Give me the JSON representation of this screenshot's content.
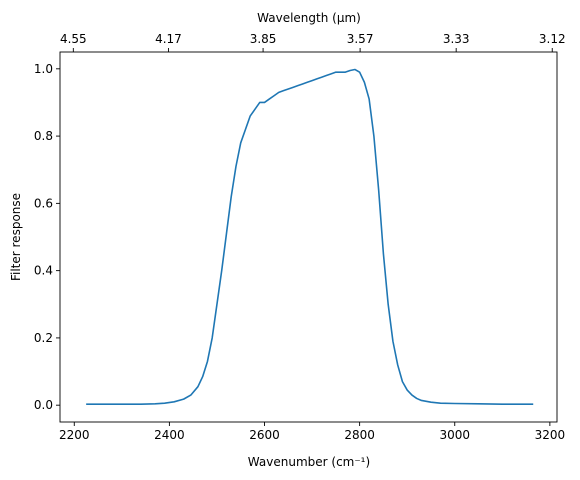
{
  "chart_data": {
    "type": "line",
    "title": "",
    "xlabel": "Wavenumber (cm⁻¹)",
    "ylabel": "Filter response",
    "top_xlabel": "Wavelength (μm)",
    "xlim": [
      2170,
      3215
    ],
    "ylim": [
      -0.05,
      1.05
    ],
    "x_ticks": [
      2200,
      2400,
      2600,
      2800,
      3000,
      3200
    ],
    "x_tick_labels": [
      "2200",
      "2400",
      "2600",
      "2800",
      "3000",
      "3200"
    ],
    "y_ticks": [
      0.0,
      0.2,
      0.4,
      0.6,
      0.8,
      1.0
    ],
    "y_tick_labels": [
      "0.0",
      "0.2",
      "0.4",
      "0.6",
      "0.8",
      "1.0"
    ],
    "top_ticks": [
      {
        "label": "4.55",
        "wavenumber": 2198
      },
      {
        "label": "4.17",
        "wavenumber": 2398
      },
      {
        "label": "3.85",
        "wavenumber": 2597
      },
      {
        "label": "3.57",
        "wavenumber": 2801
      },
      {
        "label": "3.33",
        "wavenumber": 3003
      },
      {
        "label": "3.12",
        "wavenumber": 3205
      }
    ],
    "grid": false,
    "line_color": "#1f77b4",
    "series": [
      {
        "x": [
          2225,
          2260,
          2300,
          2340,
          2370,
          2390,
          2410,
          2430,
          2445,
          2460,
          2470,
          2480,
          2490,
          2500,
          2510,
          2520,
          2530,
          2540,
          2550,
          2560,
          2570,
          2580,
          2590,
          2600,
          2610,
          2620,
          2630,
          2640,
          2650,
          2660,
          2670,
          2680,
          2690,
          2700,
          2710,
          2720,
          2730,
          2740,
          2750,
          2760,
          2770,
          2780,
          2790,
          2800,
          2810,
          2820,
          2830,
          2840,
          2850,
          2860,
          2870,
          2880,
          2890,
          2900,
          2910,
          2920,
          2930,
          2950,
          2970,
          3000,
          3050,
          3100,
          3165
        ],
        "y": [
          0.003,
          0.003,
          0.003,
          0.003,
          0.004,
          0.006,
          0.01,
          0.018,
          0.03,
          0.055,
          0.085,
          0.13,
          0.2,
          0.3,
          0.4,
          0.51,
          0.62,
          0.71,
          0.78,
          0.82,
          0.86,
          0.88,
          0.9,
          0.9,
          0.91,
          0.92,
          0.93,
          0.935,
          0.94,
          0.945,
          0.95,
          0.955,
          0.96,
          0.965,
          0.97,
          0.975,
          0.98,
          0.985,
          0.99,
          0.99,
          0.99,
          0.995,
          0.998,
          0.99,
          0.96,
          0.91,
          0.8,
          0.64,
          0.45,
          0.3,
          0.19,
          0.12,
          0.07,
          0.045,
          0.03,
          0.02,
          0.014,
          0.009,
          0.006,
          0.005,
          0.004,
          0.003,
          0.003
        ]
      }
    ]
  }
}
